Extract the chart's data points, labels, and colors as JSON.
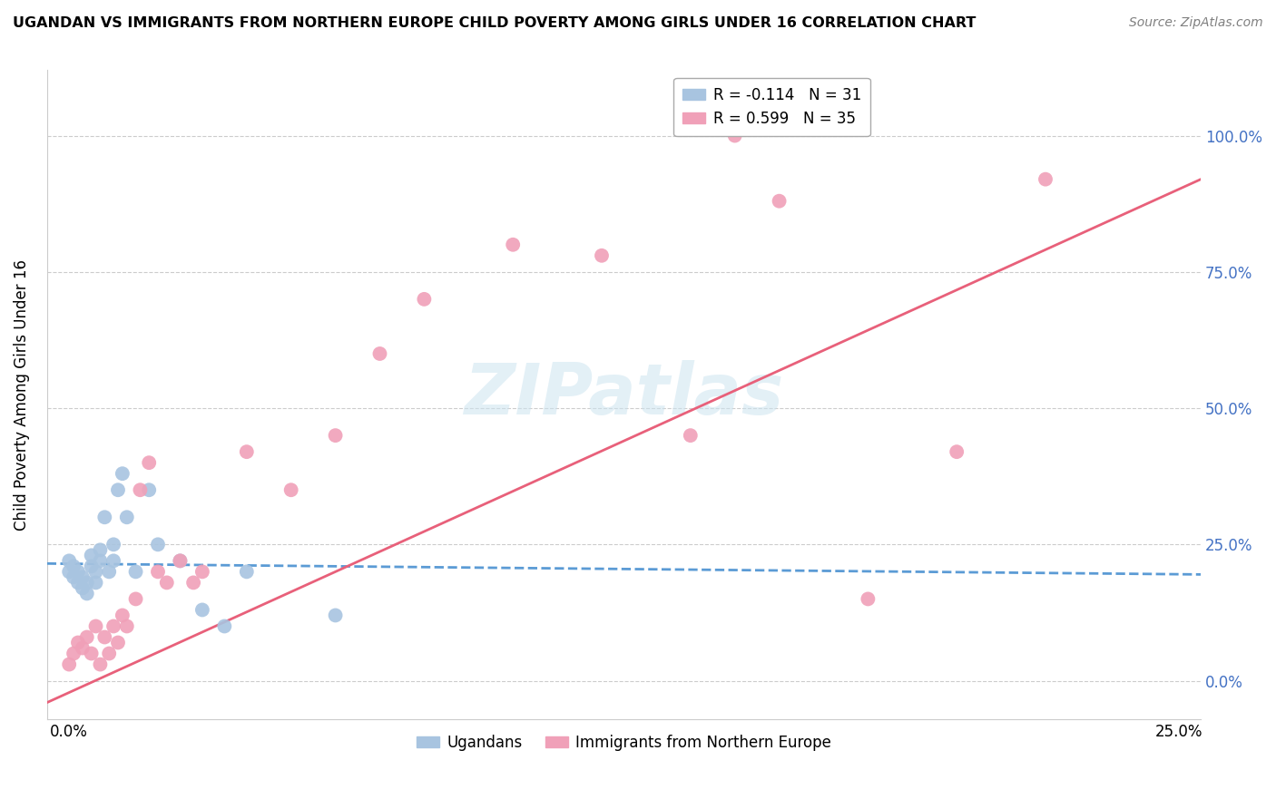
{
  "title": "UGANDAN VS IMMIGRANTS FROM NORTHERN EUROPE CHILD POVERTY AMONG GIRLS UNDER 16 CORRELATION CHART",
  "source": "Source: ZipAtlas.com",
  "ylabel": "Child Poverty Among Girls Under 16",
  "legend_entries": [
    {
      "label": "R = -0.114   N = 31",
      "color": "#a8c4e0"
    },
    {
      "label": "R = 0.599   N = 35",
      "color": "#f0a0b8"
    }
  ],
  "ugandan_x": [
    0.0,
    0.0,
    0.001,
    0.001,
    0.002,
    0.002,
    0.003,
    0.003,
    0.004,
    0.004,
    0.005,
    0.005,
    0.006,
    0.006,
    0.007,
    0.007,
    0.008,
    0.009,
    0.01,
    0.01,
    0.011,
    0.012,
    0.013,
    0.015,
    0.018,
    0.02,
    0.025,
    0.03,
    0.035,
    0.04,
    0.06
  ],
  "ugandan_y": [
    0.2,
    0.22,
    0.19,
    0.21,
    0.18,
    0.2,
    0.17,
    0.19,
    0.16,
    0.18,
    0.21,
    0.23,
    0.18,
    0.2,
    0.22,
    0.24,
    0.3,
    0.2,
    0.22,
    0.25,
    0.35,
    0.38,
    0.3,
    0.2,
    0.35,
    0.25,
    0.22,
    0.13,
    0.1,
    0.2,
    0.12
  ],
  "northern_europe_x": [
    0.0,
    0.001,
    0.002,
    0.003,
    0.004,
    0.005,
    0.006,
    0.007,
    0.008,
    0.009,
    0.01,
    0.011,
    0.012,
    0.013,
    0.015,
    0.016,
    0.018,
    0.02,
    0.022,
    0.025,
    0.028,
    0.03,
    0.04,
    0.05,
    0.06,
    0.07,
    0.08,
    0.1,
    0.12,
    0.14,
    0.15,
    0.16,
    0.18,
    0.2,
    0.22
  ],
  "northern_europe_y": [
    0.03,
    0.05,
    0.07,
    0.06,
    0.08,
    0.05,
    0.1,
    0.03,
    0.08,
    0.05,
    0.1,
    0.07,
    0.12,
    0.1,
    0.15,
    0.35,
    0.4,
    0.2,
    0.18,
    0.22,
    0.18,
    0.2,
    0.42,
    0.35,
    0.45,
    0.6,
    0.7,
    0.8,
    0.78,
    0.45,
    1.0,
    0.88,
    0.15,
    0.42,
    0.92
  ],
  "ugandan_color": "#a8c4e0",
  "northern_europe_color": "#f0a0b8",
  "ugandan_line_color": "#5b9bd5",
  "northern_europe_line_color": "#e8607a",
  "ugandan_line": {
    "x0": -0.005,
    "x1": 0.255,
    "y0": 0.215,
    "y1": 0.195
  },
  "northern_europe_line": {
    "x0": -0.005,
    "x1": 0.255,
    "y0": -0.04,
    "y1": 0.92
  },
  "watermark": "ZIPatlas",
  "background_color": "#ffffff",
  "grid_color": "#cccccc",
  "xlim": [
    -0.005,
    0.255
  ],
  "ylim": [
    -0.07,
    1.12
  ],
  "yticks": [
    0.0,
    0.25,
    0.5,
    0.75,
    1.0
  ],
  "ytick_labels_right": [
    "0.0%",
    "25.0%",
    "50.0%",
    "75.0%",
    "100.0%"
  ],
  "xticks": [
    0.0,
    0.25
  ],
  "xtick_labels": [
    "0.0%",
    "25.0%"
  ]
}
